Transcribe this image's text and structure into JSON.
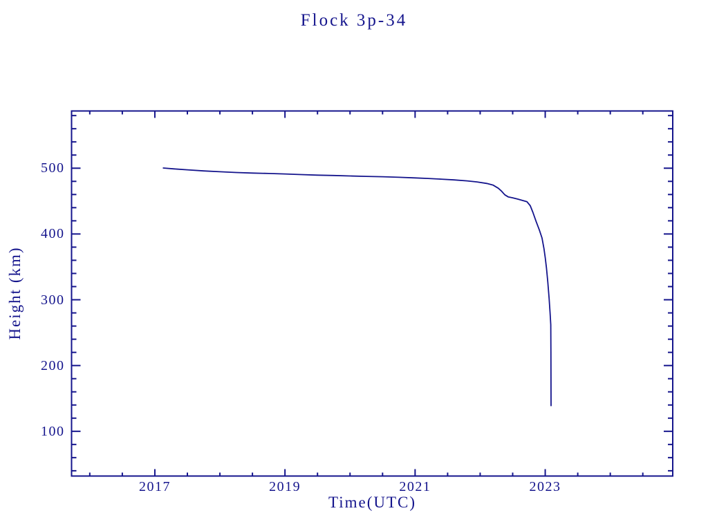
{
  "title": "Flock 3p-34",
  "colors": {
    "accent": "#14148C",
    "background": "#FFFFFF",
    "line": "#14148C"
  },
  "chart_data": {
    "type": "line",
    "title": "Flock 3p-34",
    "xlabel": "Time(UTC)",
    "ylabel": "Height (km)",
    "xlim": [
      2015.72,
      2024.96
    ],
    "ylim": [
      32,
      587
    ],
    "grid": false,
    "legend": null,
    "x_major_ticks": [
      2017,
      2019,
      2021,
      2023
    ],
    "x_tick_labels": [
      "2017",
      "2019",
      "2021",
      "2023"
    ],
    "x_minor_step": 0.5,
    "y_major_ticks": [
      100,
      200,
      300,
      400,
      500
    ],
    "y_tick_labels": [
      "100",
      "200",
      "300",
      "400",
      "500"
    ],
    "y_minor_step": 20,
    "series": [
      {
        "name": "orbital-height",
        "color": "#14148C",
        "points": [
          [
            2017.13,
            500.3
          ],
          [
            2017.3,
            498.9
          ],
          [
            2017.5,
            497.5
          ],
          [
            2017.75,
            495.9
          ],
          [
            2018.0,
            494.6
          ],
          [
            2018.25,
            493.5
          ],
          [
            2018.5,
            492.6
          ],
          [
            2018.75,
            492.0
          ],
          [
            2019.0,
            491.2
          ],
          [
            2019.25,
            490.3
          ],
          [
            2019.5,
            489.5
          ],
          [
            2019.75,
            488.9
          ],
          [
            2020.0,
            488.2
          ],
          [
            2020.25,
            487.6
          ],
          [
            2020.5,
            487.0
          ],
          [
            2020.75,
            486.2
          ],
          [
            2021.0,
            485.2
          ],
          [
            2021.2,
            484.4
          ],
          [
            2021.4,
            483.4
          ],
          [
            2021.6,
            482.2
          ],
          [
            2021.8,
            480.7
          ],
          [
            2021.95,
            479.2
          ],
          [
            2022.1,
            476.8
          ],
          [
            2022.2,
            474.2
          ],
          [
            2022.28,
            469.5
          ],
          [
            2022.33,
            465.0
          ],
          [
            2022.38,
            459.5
          ],
          [
            2022.43,
            456.5
          ],
          [
            2022.5,
            455.0
          ],
          [
            2022.58,
            453.0
          ],
          [
            2022.65,
            451.0
          ],
          [
            2022.72,
            449.0
          ],
          [
            2022.77,
            443.0
          ],
          [
            2022.81,
            433.0
          ],
          [
            2022.86,
            419.0
          ],
          [
            2022.91,
            406.0
          ],
          [
            2022.95,
            394.0
          ],
          [
            2022.98,
            378.0
          ],
          [
            2023.0,
            364.0
          ],
          [
            2023.02,
            348.0
          ],
          [
            2023.04,
            327.0
          ],
          [
            2023.06,
            302.0
          ],
          [
            2023.075,
            280.0
          ],
          [
            2023.085,
            262.0
          ],
          [
            2023.088,
            220.0
          ],
          [
            2023.09,
            139.0
          ]
        ]
      }
    ]
  }
}
